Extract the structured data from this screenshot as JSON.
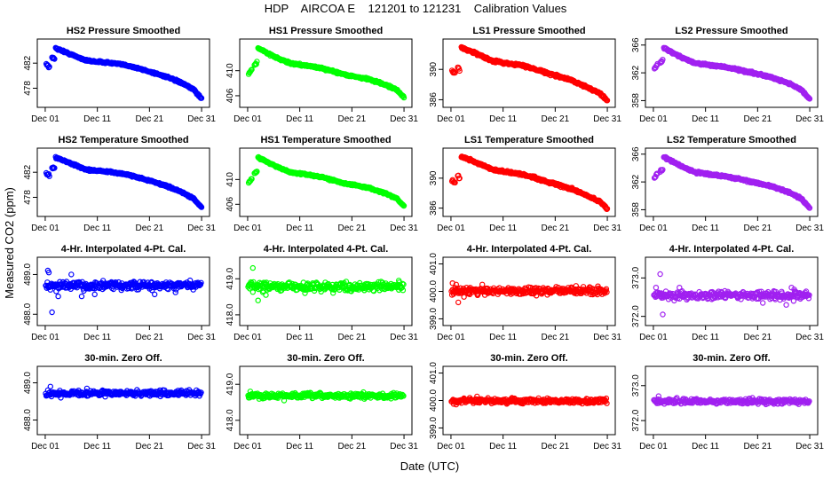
{
  "title": "HDP    AIRCOA E    121201 to 121231    Calibration Values",
  "xlabel": "Date (UTC)",
  "ylabel": "Measured CO2 (ppm)",
  "x_ticks": [
    "Dec 01",
    "Dec 11",
    "Dec 21",
    "Dec 31"
  ],
  "chart_data": {
    "type": "scatter",
    "x_unit": "day of December 2012",
    "xlim": [
      0.5,
      31.5
    ],
    "x_tick_values": [
      1,
      11,
      21,
      31
    ],
    "row_titles": [
      "Pressure Smoothed",
      "Temperature Smoothed",
      "4-Hr. Interpolated 4-Pt. Cal.",
      "30-min. Zero Off."
    ],
    "columns": [
      {
        "name": "HS2",
        "color": "#0000ff",
        "panels": [
          {
            "title": "HS2 Pressure Smoothed",
            "type": "trend",
            "ylim": [
              475.8,
              485.0
            ],
            "yticks": [
              "478",
              "482"
            ],
            "ytick_values": [
              478,
              482
            ],
            "gap": [
              2.1,
              2.7
            ],
            "segments": [
              [
                1.2,
                481.9,
                1.9,
                481.3
              ],
              [
                2.3,
                482.8,
                2.8,
                482.7
              ],
              [
                3.0,
                484.4
              ],
              [
                6.5,
                483.2
              ],
              [
                9.0,
                482.4
              ],
              [
                14.0,
                482.0
              ],
              [
                17.0,
                481.6
              ],
              [
                20.0,
                480.9
              ],
              [
                24.0,
                479.9
              ],
              [
                27.0,
                478.9
              ],
              [
                29.5,
                477.8
              ],
              [
                31.0,
                476.3
              ]
            ]
          },
          {
            "title": "HS2 Temperature Smoothed",
            "type": "trend",
            "ylim": [
              475.8,
              485.0
            ],
            "yticks": [
              "478",
              "482"
            ],
            "ytick_values": [
              478,
              482
            ],
            "gap": [
              2.1,
              2.7
            ],
            "segments": [
              [
                1.2,
                481.9,
                1.9,
                481.3
              ],
              [
                2.3,
                482.8,
                2.8,
                482.7
              ],
              [
                3.0,
                484.4
              ],
              [
                6.5,
                483.2
              ],
              [
                9.0,
                482.4
              ],
              [
                14.0,
                482.0
              ],
              [
                17.0,
                481.6
              ],
              [
                20.0,
                480.9
              ],
              [
                24.0,
                479.9
              ],
              [
                27.0,
                478.9
              ],
              [
                29.5,
                477.8
              ],
              [
                31.0,
                476.3
              ]
            ]
          },
          {
            "title": "4-Hr. Interpolated 4-Pt. Cal.",
            "type": "noise",
            "ylim": [
              487.85,
              489.3
            ],
            "yticks": [
              "488.0",
              "489.0"
            ],
            "ytick_values": [
              488.0,
              489.0
            ],
            "center": 488.72,
            "spread": 0.07,
            "outliers": [
              [
                1.5,
                489.1
              ],
              [
                1.7,
                489.05
              ],
              [
                2.3,
                488.05
              ],
              [
                3.5,
                488.45
              ],
              [
                6.0,
                489.0
              ],
              [
                8.0,
                488.45
              ],
              [
                10.5,
                488.5
              ],
              [
                22.0,
                488.5
              ],
              [
                26.0,
                488.55
              ]
            ]
          },
          {
            "title": "30-min. Zero Off.",
            "type": "noise",
            "ylim": [
              487.75,
              489.3
            ],
            "yticks": [
              "488.0",
              "489.0"
            ],
            "ytick_values": [
              488.0,
              489.0
            ],
            "center": 488.72,
            "spread": 0.05,
            "outliers": [
              [
                2.0,
                488.9
              ],
              [
                4.0,
                488.6
              ],
              [
                9.0,
                488.85
              ]
            ]
          }
        ]
      },
      {
        "name": "HS1",
        "color": "#00ff00",
        "panels": [
          {
            "title": "HS1 Pressure Smoothed",
            "type": "trend",
            "ylim": [
              405.0,
              414.2
            ],
            "yticks": [
              "406",
              "410"
            ],
            "ytick_values": [
              406,
              410
            ],
            "gap": [
              2.1,
              2.7
            ],
            "segments": [
              [
                1.2,
                409.5,
                1.9,
                410.3
              ],
              [
                2.3,
                411.0,
                2.8,
                411.3
              ],
              [
                3.0,
                413.6
              ],
              [
                6.5,
                412.1
              ],
              [
                9.0,
                411.2
              ],
              [
                14.0,
                410.6
              ],
              [
                17.0,
                410.0
              ],
              [
                20.0,
                409.3
              ],
              [
                24.0,
                408.7
              ],
              [
                27.0,
                407.9
              ],
              [
                29.5,
                407.0
              ],
              [
                31.0,
                405.7
              ]
            ]
          },
          {
            "title": "HS1 Temperature Smoothed",
            "type": "trend",
            "ylim": [
              404.9,
              414.2
            ],
            "yticks": [
              "406",
              "410"
            ],
            "ytick_values": [
              406,
              410
            ],
            "gap": [
              2.1,
              2.7
            ],
            "segments": [
              [
                1.2,
                409.5,
                1.9,
                410.3
              ],
              [
                2.3,
                411.0,
                2.8,
                411.3
              ],
              [
                3.0,
                413.6
              ],
              [
                6.5,
                412.1
              ],
              [
                9.0,
                411.2
              ],
              [
                14.0,
                410.6
              ],
              [
                17.0,
                410.0
              ],
              [
                20.0,
                409.3
              ],
              [
                24.0,
                408.7
              ],
              [
                27.0,
                407.9
              ],
              [
                29.5,
                407.0
              ],
              [
                31.0,
                405.7
              ]
            ]
          },
          {
            "title": "4-Hr. Interpolated 4-Pt. Cal.",
            "type": "noise",
            "ylim": [
              417.85,
              419.45
            ],
            "yticks": [
              "418.0",
              "419.0"
            ],
            "ytick_values": [
              418.0,
              419.0
            ],
            "center": 418.78,
            "spread": 0.08,
            "outliers": [
              [
                2.0,
                419.3
              ],
              [
                3.0,
                418.4
              ],
              [
                4.5,
                418.55
              ],
              [
                12.0,
                418.6
              ],
              [
                30.0,
                418.95
              ]
            ]
          },
          {
            "title": "30-min. Zero Off.",
            "type": "noise",
            "ylim": [
              417.75,
              419.35
            ],
            "yticks": [
              "418.0",
              "419.0"
            ],
            "ytick_values": [
              418.0,
              419.0
            ],
            "center": 418.68,
            "spread": 0.05,
            "outliers": [
              [
                1.5,
                418.8
              ],
              [
                8.0,
                418.55
              ]
            ]
          }
        ]
      },
      {
        "name": "LS1",
        "color": "#ff0000",
        "panels": [
          {
            "title": "LS1 Pressure Smoothed",
            "type": "trend",
            "ylim": [
              385.7,
              393.3
            ],
            "yticks": [
              "386",
              "390"
            ],
            "ytick_values": [
              386,
              390
            ],
            "gap": [
              2.2,
              2.6
            ],
            "segments": [
              [
                1.2,
                389.8,
                1.9,
                389.4
              ],
              [
                2.3,
                390.3,
                2.7,
                389.9
              ],
              [
                3.0,
                392.9
              ],
              [
                6.5,
                391.9
              ],
              [
                9.0,
                391.1
              ],
              [
                14.0,
                390.6
              ],
              [
                17.0,
                390.1
              ],
              [
                20.0,
                389.4
              ],
              [
                24.0,
                388.6
              ],
              [
                27.0,
                387.7
              ],
              [
                29.5,
                386.9
              ],
              [
                31.0,
                385.9
              ]
            ]
          },
          {
            "title": "LS1 Temperature Smoothed",
            "type": "trend",
            "ylim": [
              385.6,
              393.3
            ],
            "yticks": [
              "386",
              "390"
            ],
            "ytick_values": [
              386,
              390
            ],
            "gap": [
              2.2,
              2.6
            ],
            "segments": [
              [
                1.2,
                389.8,
                1.9,
                389.4
              ],
              [
                2.3,
                390.3,
                2.7,
                389.9
              ],
              [
                3.0,
                392.9
              ],
              [
                6.5,
                391.9
              ],
              [
                9.0,
                391.1
              ],
              [
                14.0,
                390.6
              ],
              [
                17.0,
                390.1
              ],
              [
                20.0,
                389.4
              ],
              [
                24.0,
                388.6
              ],
              [
                27.0,
                387.7
              ],
              [
                29.5,
                386.9
              ],
              [
                31.0,
                385.9
              ]
            ]
          },
          {
            "title": "4-Hr. Interpolated 4-Pt. Cal.",
            "type": "noise",
            "ylim": [
              398.95,
              401.05
            ],
            "yticks": [
              "399.0",
              "400.0",
              "401.0"
            ],
            "ytick_values": [
              399.0,
              400.0,
              401.0
            ],
            "center": 400.02,
            "spread": 0.09,
            "outliers": [
              [
                1.3,
                400.3
              ],
              [
                2.0,
                400.25
              ],
              [
                2.4,
                399.6
              ],
              [
                3.5,
                399.8
              ],
              [
                7.0,
                400.25
              ],
              [
                25.0,
                400.2
              ]
            ]
          },
          {
            "title": "30-min. Zero Off.",
            "type": "noise",
            "ylim": [
              398.95,
              401.05
            ],
            "yticks": [
              "399.0",
              "400.0",
              "401.0"
            ],
            "ytick_values": [
              399.0,
              400.0,
              401.0
            ],
            "center": 399.98,
            "spread": 0.06,
            "outliers": [
              [
                2.0,
                399.85
              ],
              [
                6.0,
                400.15
              ]
            ]
          }
        ]
      },
      {
        "name": "LS2",
        "color": "#a020f0",
        "panels": [
          {
            "title": "LS2 Pressure Smoothed",
            "type": "trend",
            "ylim": [
              357.8,
              366.1
            ],
            "yticks": [
              "358",
              "362",
              "366"
            ],
            "ytick_values": [
              358,
              362,
              366
            ],
            "gap": [
              2.1,
              2.6
            ],
            "segments": [
              [
                1.2,
                362.7,
                1.9,
                363.3
              ],
              [
                2.3,
                363.5,
                2.8,
                363.8
              ],
              [
                3.0,
                365.6
              ],
              [
                6.5,
                364.2
              ],
              [
                9.0,
                363.4
              ],
              [
                14.0,
                362.9
              ],
              [
                17.0,
                362.5
              ],
              [
                20.0,
                362.0
              ],
              [
                24.0,
                361.3
              ],
              [
                27.0,
                360.5
              ],
              [
                29.5,
                359.5
              ],
              [
                31.0,
                358.2
              ]
            ]
          },
          {
            "title": "LS2 Temperature Smoothed",
            "type": "trend",
            "ylim": [
              357.8,
              366.1
            ],
            "yticks": [
              "358",
              "362",
              "366"
            ],
            "ytick_values": [
              358,
              362,
              366
            ],
            "gap": [
              2.1,
              2.6
            ],
            "segments": [
              [
                1.2,
                362.7,
                1.9,
                363.3
              ],
              [
                2.3,
                363.5,
                2.8,
                363.8
              ],
              [
                3.0,
                365.6
              ],
              [
                6.5,
                364.2
              ],
              [
                9.0,
                363.4
              ],
              [
                14.0,
                362.9
              ],
              [
                17.0,
                362.5
              ],
              [
                20.0,
                362.0
              ],
              [
                24.0,
                361.3
              ],
              [
                27.0,
                360.5
              ],
              [
                29.5,
                359.5
              ],
              [
                31.0,
                358.2
              ]
            ]
          },
          {
            "title": "4-Hr. Interpolated 4-Pt. Cal.",
            "type": "noise",
            "ylim": [
              371.9,
              373.4
            ],
            "yticks": [
              "372.0",
              "373.0"
            ],
            "ytick_values": [
              372.0,
              373.0
            ],
            "center": 372.55,
            "spread": 0.07,
            "outliers": [
              [
                1.5,
                372.75
              ],
              [
                2.3,
                373.1
              ],
              [
                2.8,
                372.05
              ],
              [
                6.0,
                372.75
              ],
              [
                22.0,
                372.35
              ],
              [
                26.5,
                372.3
              ],
              [
                27.5,
                372.75
              ],
              [
                28.0,
                372.7
              ]
            ]
          },
          {
            "title": "30-min. Zero Off.",
            "type": "noise",
            "ylim": [
              371.75,
              373.4
            ],
            "yticks": [
              "372.0",
              "373.0"
            ],
            "ytick_values": [
              372.0,
              373.0
            ],
            "center": 372.55,
            "spread": 0.05,
            "outliers": [
              [
                2.0,
                372.7
              ],
              [
                20.0,
                372.65
              ]
            ]
          }
        ]
      }
    ]
  }
}
